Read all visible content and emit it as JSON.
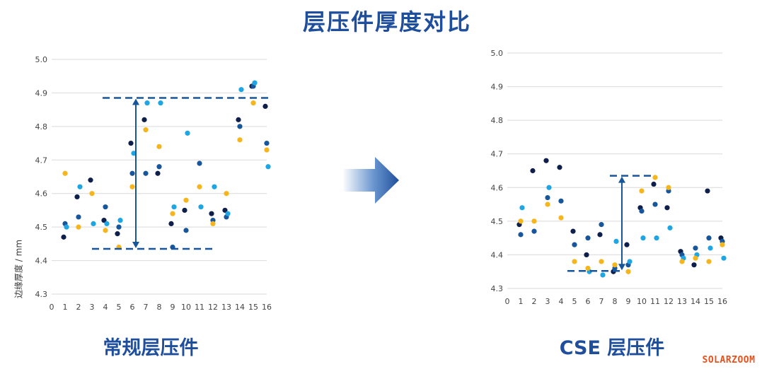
{
  "title": "层压件厚度对比",
  "watermark": "SOLARZOOM",
  "colors": {
    "navy": "#0d1f4a",
    "blue": "#17569b",
    "sky": "#1ea5e3",
    "gold": "#f5b51c",
    "grid": "#d9d9d9",
    "accent": "#1f4f9c"
  },
  "chart_data": [
    {
      "type": "scatter",
      "title": "常规层压件",
      "ylabel": "边缘厚度 / mm",
      "xlabel": "",
      "xlim": [
        0,
        16
      ],
      "ylim": [
        4.3,
        5.0
      ],
      "y_ticks": [
        "4.3",
        "4.4",
        "4.5",
        "4.6",
        "4.7",
        "4.8",
        "4.9",
        "5.0"
      ],
      "x_ticks": [
        "0",
        "1",
        "2",
        "3",
        "4",
        "5",
        "6",
        "7",
        "8",
        "9",
        "10",
        "11",
        "12",
        "13",
        "14",
        "15",
        "16"
      ],
      "grid": true,
      "range_lines": {
        "upper": 4.885,
        "lower": 4.435
      },
      "series": [
        {
          "color": "navy",
          "points": [
            [
              1,
              4.47
            ],
            [
              2,
              4.59
            ],
            [
              3,
              4.64
            ],
            [
              4,
              4.52
            ],
            [
              5,
              4.48
            ],
            [
              6,
              4.75
            ],
            [
              7,
              4.82
            ],
            [
              8,
              4.66
            ],
            [
              9,
              4.51
            ],
            [
              10,
              4.55
            ],
            [
              12,
              4.54
            ],
            [
              13,
              4.55
            ],
            [
              14,
              4.82
            ],
            [
              15,
              4.92
            ],
            [
              16,
              4.86
            ]
          ]
        },
        {
          "color": "blue",
          "points": [
            [
              1,
              4.51
            ],
            [
              2,
              4.53
            ],
            [
              4,
              4.56
            ],
            [
              5,
              4.5
            ],
            [
              6,
              4.66
            ],
            [
              7,
              4.66
            ],
            [
              8,
              4.68
            ],
            [
              9,
              4.44
            ],
            [
              10,
              4.49
            ],
            [
              11,
              4.69
            ],
            [
              12,
              4.52
            ],
            [
              13,
              4.53
            ],
            [
              14,
              4.8
            ],
            [
              15,
              4.92
            ],
            [
              16,
              4.75
            ]
          ]
        },
        {
          "color": "sky",
          "points": [
            [
              1,
              4.5
            ],
            [
              2,
              4.62
            ],
            [
              3,
              4.51
            ],
            [
              4,
              4.51
            ],
            [
              5,
              4.52
            ],
            [
              6,
              4.72
            ],
            [
              7,
              4.87
            ],
            [
              8,
              4.87
            ],
            [
              9,
              4.56
            ],
            [
              10,
              4.78
            ],
            [
              11,
              4.56
            ],
            [
              12,
              4.62
            ],
            [
              13,
              4.54
            ],
            [
              14,
              4.91
            ],
            [
              15,
              4.93
            ],
            [
              16,
              4.68
            ]
          ]
        },
        {
          "color": "gold",
          "points": [
            [
              1,
              4.66
            ],
            [
              2,
              4.5
            ],
            [
              3,
              4.6
            ],
            [
              4,
              4.49
            ],
            [
              5,
              4.44
            ],
            [
              6,
              4.62
            ],
            [
              7,
              4.79
            ],
            [
              8,
              4.74
            ],
            [
              9,
              4.54
            ],
            [
              10,
              4.58
            ],
            [
              11,
              4.62
            ],
            [
              12,
              4.51
            ],
            [
              13,
              4.6
            ],
            [
              14,
              4.76
            ],
            [
              15,
              4.87
            ],
            [
              16,
              4.73
            ]
          ]
        }
      ]
    },
    {
      "type": "scatter",
      "title": "CSE 层压件",
      "xlabel": "",
      "ylabel": "",
      "xlim": [
        0,
        16
      ],
      "ylim": [
        4.3,
        5.0
      ],
      "y_ticks": [
        "4.3",
        "4.4",
        "4.5",
        "4.6",
        "4.7",
        "4.8",
        "4.9",
        "5.0"
      ],
      "x_ticks": [
        "0",
        "1",
        "2",
        "3",
        "4",
        "5",
        "6",
        "7",
        "8",
        "9",
        "10",
        "11",
        "12",
        "13",
        "14",
        "15",
        "16"
      ],
      "grid": true,
      "range_lines": {
        "upper": 4.635,
        "lower": 4.352
      },
      "series": [
        {
          "color": "navy",
          "points": [
            [
              1,
              4.49
            ],
            [
              2,
              4.65
            ],
            [
              3,
              4.68
            ],
            [
              4,
              4.66
            ],
            [
              5,
              4.47
            ],
            [
              6,
              4.4
            ],
            [
              7,
              4.46
            ],
            [
              8,
              4.35
            ],
            [
              9,
              4.43
            ],
            [
              10,
              4.54
            ],
            [
              11,
              4.61
            ],
            [
              12,
              4.54
            ],
            [
              13,
              4.41
            ],
            [
              14,
              4.37
            ],
            [
              15,
              4.59
            ],
            [
              16,
              4.45
            ]
          ]
        },
        {
          "color": "blue",
          "points": [
            [
              1,
              4.46
            ],
            [
              2,
              4.47
            ],
            [
              3,
              4.57
            ],
            [
              4,
              4.56
            ],
            [
              5,
              4.43
            ],
            [
              6,
              4.45
            ],
            [
              7,
              4.49
            ],
            [
              8,
              4.36
            ],
            [
              9,
              4.37
            ],
            [
              10,
              4.53
            ],
            [
              11,
              4.55
            ],
            [
              12,
              4.59
            ],
            [
              13,
              4.4
            ],
            [
              14,
              4.42
            ],
            [
              15,
              4.45
            ],
            [
              16,
              4.44
            ]
          ]
        },
        {
          "color": "sky",
          "points": [
            [
              1,
              4.54
            ],
            [
              3,
              4.6
            ],
            [
              6,
              4.35
            ],
            [
              7,
              4.34
            ],
            [
              8,
              4.44
            ],
            [
              9,
              4.38
            ],
            [
              10,
              4.45
            ],
            [
              11,
              4.45
            ],
            [
              12,
              4.48
            ],
            [
              13,
              4.39
            ],
            [
              14,
              4.4
            ],
            [
              15,
              4.42
            ],
            [
              16,
              4.39
            ]
          ]
        },
        {
          "color": "gold",
          "points": [
            [
              1,
              4.5
            ],
            [
              2,
              4.5
            ],
            [
              3,
              4.55
            ],
            [
              4,
              4.51
            ],
            [
              5,
              4.38
            ],
            [
              6,
              4.36
            ],
            [
              7,
              4.38
            ],
            [
              8,
              4.37
            ],
            [
              9,
              4.35
            ],
            [
              10,
              4.59
            ],
            [
              11,
              4.63
            ],
            [
              12,
              4.6
            ],
            [
              13,
              4.38
            ],
            [
              14,
              4.39
            ],
            [
              15,
              4.38
            ],
            [
              16,
              4.43
            ]
          ]
        }
      ]
    }
  ]
}
